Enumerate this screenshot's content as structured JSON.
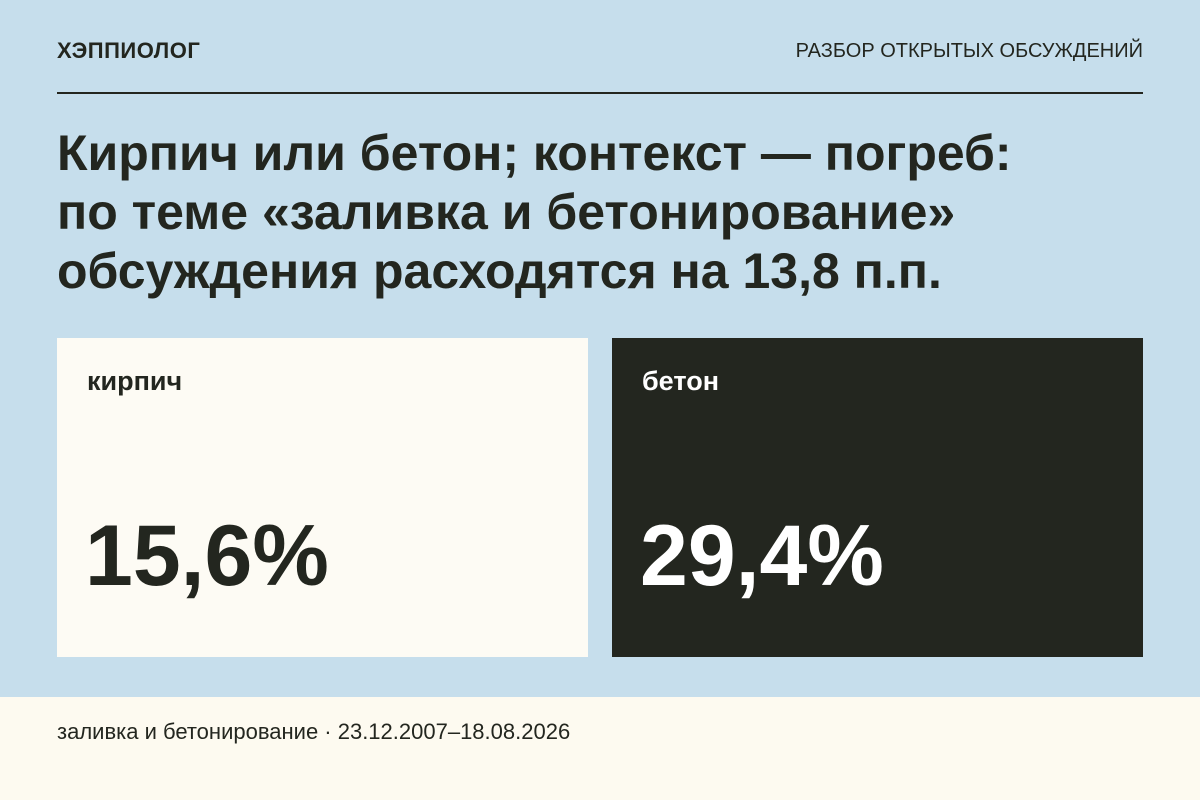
{
  "header": {
    "brand": "ХЭППИОЛОГ",
    "section": "РАЗБОР ОТКРЫТЫХ ОБСУЖДЕНИЙ"
  },
  "title": [
    "Кирпич или бетон; контекст — погреб:",
    "по теме «заливка и бетонирование»",
    "обсуждения расходятся на 13,8 п.п."
  ],
  "cards": [
    {
      "label": "кирпич",
      "value": "15,6%"
    },
    {
      "label": "бетон",
      "value": "29,4%"
    }
  ],
  "footer": "заливка и бетонирование · 23.12.2007–18.08.2026"
}
